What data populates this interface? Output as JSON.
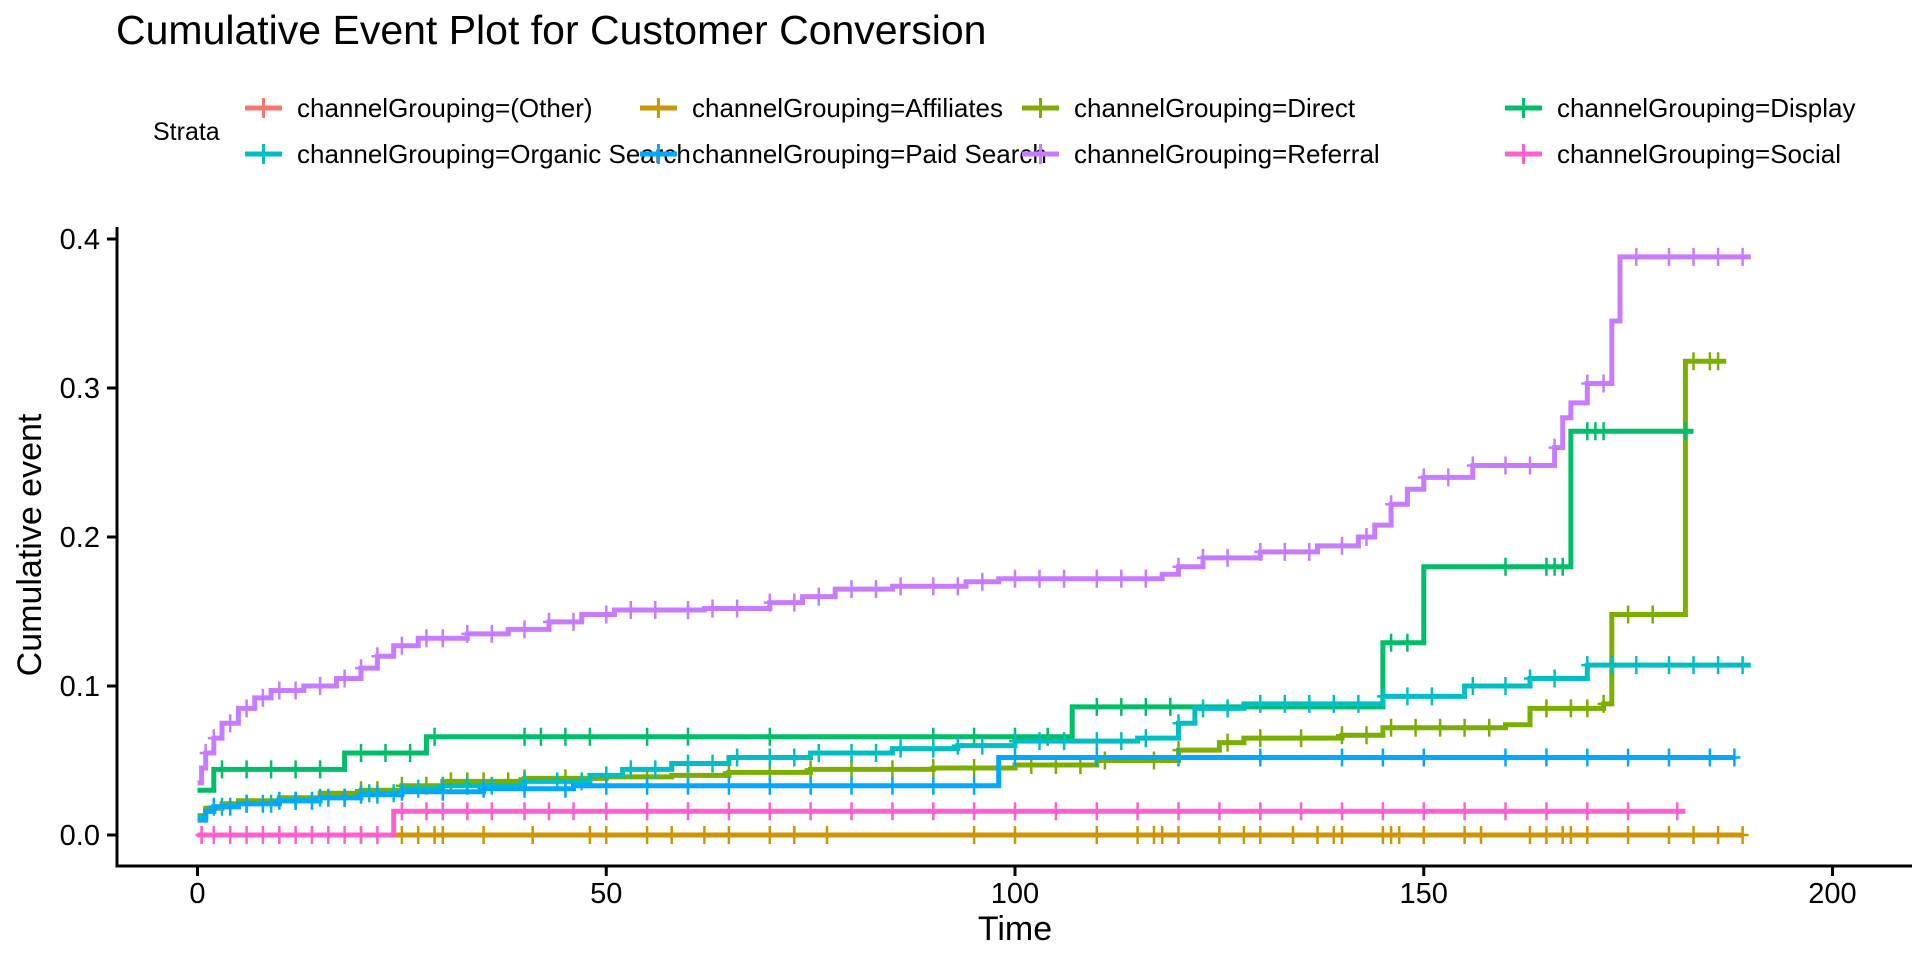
{
  "chart_data": {
    "type": "line",
    "subtype": "step",
    "title": "Cumulative Event Plot for Customer Conversion",
    "xlabel": "Time",
    "ylabel": "Cumulative event",
    "xlim": [
      -10,
      207
    ],
    "ylim": [
      -0.019,
      0.41
    ],
    "xticks": [
      0,
      50,
      100,
      150,
      200
    ],
    "yticks": [
      0.0,
      0.1,
      0.2,
      0.3,
      0.4
    ],
    "xtick_labels": [
      "0",
      "50",
      "100",
      "150",
      "200"
    ],
    "ytick_labels": [
      "0.0",
      "0.1",
      "0.2",
      "0.3",
      "0.4"
    ],
    "grid": false,
    "legend": {
      "title": "Strata",
      "placement": "top",
      "columns": 4
    },
    "series": [
      {
        "name": "channelGrouping=(Other)",
        "color": "#F8766D",
        "steps": [
          [
            0,
            0.0
          ],
          [
            1,
            0.0
          ]
        ],
        "censor": [
          0.5
        ]
      },
      {
        "name": "channelGrouping=Affiliates",
        "color": "#CD9600",
        "steps": [
          [
            0,
            0.0
          ],
          [
            189,
            0.0
          ]
        ],
        "censor": [
          20,
          25,
          27,
          29,
          30,
          35,
          41,
          48,
          50,
          55,
          58,
          62,
          65,
          70,
          73,
          77,
          95,
          100,
          110,
          115,
          117,
          118,
          120,
          125,
          128,
          130,
          134,
          137,
          139,
          140,
          145,
          146,
          147,
          150,
          155,
          157,
          163,
          165,
          167,
          168,
          170,
          175,
          180,
          183,
          186,
          189
        ]
      },
      {
        "name": "channelGrouping=Direct",
        "color": "#7CAE00",
        "steps": [
          [
            0,
            0.013
          ],
          [
            1,
            0.018
          ],
          [
            3,
            0.021
          ],
          [
            5,
            0.023
          ],
          [
            10,
            0.025
          ],
          [
            15,
            0.028
          ],
          [
            20,
            0.03
          ],
          [
            25,
            0.033
          ],
          [
            30,
            0.036
          ],
          [
            40,
            0.038
          ],
          [
            50,
            0.039
          ],
          [
            58,
            0.04
          ],
          [
            65,
            0.042
          ],
          [
            75,
            0.044
          ],
          [
            90,
            0.045
          ],
          [
            100,
            0.047
          ],
          [
            110,
            0.05
          ],
          [
            120,
            0.057
          ],
          [
            125,
            0.062
          ],
          [
            128,
            0.065
          ],
          [
            140,
            0.067
          ],
          [
            145,
            0.072
          ],
          [
            160,
            0.074
          ],
          [
            163,
            0.085
          ],
          [
            172,
            0.088
          ],
          [
            173,
            0.148
          ],
          [
            181,
            0.148
          ],
          [
            182,
            0.318
          ],
          [
            187,
            0.318
          ]
        ],
        "censor": [
          20,
          22,
          25,
          28,
          31,
          33,
          35,
          38,
          40,
          45,
          50,
          55,
          60,
          65,
          70,
          75,
          80,
          85,
          90,
          95,
          98,
          102,
          105,
          108,
          111,
          117,
          120,
          126,
          130,
          135,
          140,
          143,
          146,
          149,
          152,
          155,
          158,
          165,
          168,
          170,
          172,
          175,
          178,
          183,
          185,
          186
        ]
      },
      {
        "name": "channelGrouping=Display",
        "color": "#00BE67",
        "steps": [
          [
            0,
            0.03
          ],
          [
            2,
            0.044
          ],
          [
            18,
            0.055
          ],
          [
            28,
            0.066
          ],
          [
            107,
            0.086
          ],
          [
            145,
            0.129
          ],
          [
            150,
            0.18
          ],
          [
            168,
            0.271
          ],
          [
            183,
            0.271
          ]
        ],
        "censor": [
          3,
          6,
          9,
          12,
          15,
          20,
          23,
          26,
          29,
          40,
          42,
          45,
          48,
          55,
          60,
          70,
          90,
          95,
          100,
          104,
          110,
          113,
          116,
          119,
          146,
          148,
          160,
          165,
          166,
          167,
          170,
          171,
          172,
          182
        ]
      },
      {
        "name": "channelGrouping=Organic Search",
        "color": "#00BFC4",
        "steps": [
          [
            0,
            0.012
          ],
          [
            1,
            0.016
          ],
          [
            2,
            0.019
          ],
          [
            5,
            0.021
          ],
          [
            10,
            0.023
          ],
          [
            15,
            0.025
          ],
          [
            20,
            0.028
          ],
          [
            25,
            0.031
          ],
          [
            30,
            0.033
          ],
          [
            40,
            0.036
          ],
          [
            48,
            0.04
          ],
          [
            52,
            0.044
          ],
          [
            58,
            0.048
          ],
          [
            65,
            0.052
          ],
          [
            75,
            0.055
          ],
          [
            85,
            0.058
          ],
          [
            93,
            0.06
          ],
          [
            100,
            0.063
          ],
          [
            115,
            0.065
          ],
          [
            120,
            0.075
          ],
          [
            122,
            0.085
          ],
          [
            128,
            0.088
          ],
          [
            145,
            0.093
          ],
          [
            155,
            0.1
          ],
          [
            163,
            0.105
          ],
          [
            170,
            0.114
          ],
          [
            190,
            0.114
          ]
        ],
        "censor": [
          3,
          6,
          9,
          12,
          15,
          18,
          21,
          24,
          27,
          30,
          33,
          36,
          40,
          44,
          47,
          50,
          53,
          56,
          60,
          63,
          66,
          70,
          73,
          76,
          80,
          83,
          86,
          90,
          93,
          96,
          100,
          103,
          106,
          110,
          113,
          116,
          120,
          123,
          126,
          130,
          133,
          136,
          139,
          142,
          145,
          148,
          151,
          156,
          160,
          163,
          166,
          170,
          173,
          176,
          180,
          183,
          186,
          189
        ]
      },
      {
        "name": "channelGrouping=Paid Search",
        "color": "#00A9FF",
        "steps": [
          [
            0,
            0.01
          ],
          [
            1,
            0.016
          ],
          [
            2,
            0.019
          ],
          [
            5,
            0.021
          ],
          [
            10,
            0.023
          ],
          [
            15,
            0.025
          ],
          [
            20,
            0.027
          ],
          [
            25,
            0.029
          ],
          [
            35,
            0.031
          ],
          [
            46,
            0.033
          ],
          [
            98,
            0.052
          ],
          [
            188,
            0.052
          ]
        ],
        "censor": [
          2,
          4,
          6,
          8,
          10,
          12,
          14,
          16,
          18,
          20,
          22,
          25,
          30,
          35,
          40,
          45,
          50,
          55,
          60,
          65,
          70,
          75,
          80,
          85,
          90,
          95,
          100,
          110,
          120,
          130,
          140,
          145,
          150,
          160,
          165,
          170,
          175,
          180,
          185,
          188
        ]
      },
      {
        "name": "channelGrouping=Referral",
        "color": "#C77CFF",
        "steps": [
          [
            0,
            0.035
          ],
          [
            0.5,
            0.045
          ],
          [
            1,
            0.055
          ],
          [
            2,
            0.065
          ],
          [
            3,
            0.075
          ],
          [
            5,
            0.085
          ],
          [
            7,
            0.092
          ],
          [
            9,
            0.097
          ],
          [
            13,
            0.1
          ],
          [
            17,
            0.105
          ],
          [
            20,
            0.112
          ],
          [
            22,
            0.12
          ],
          [
            24,
            0.127
          ],
          [
            27,
            0.132
          ],
          [
            33,
            0.135
          ],
          [
            38,
            0.138
          ],
          [
            43,
            0.143
          ],
          [
            47,
            0.148
          ],
          [
            51,
            0.151
          ],
          [
            62,
            0.152
          ],
          [
            70,
            0.156
          ],
          [
            74,
            0.16
          ],
          [
            78,
            0.165
          ],
          [
            85,
            0.167
          ],
          [
            94,
            0.17
          ],
          [
            98,
            0.172
          ],
          [
            118,
            0.175
          ],
          [
            120,
            0.18
          ],
          [
            123,
            0.186
          ],
          [
            130,
            0.19
          ],
          [
            137,
            0.194
          ],
          [
            142,
            0.2
          ],
          [
            144,
            0.208
          ],
          [
            146,
            0.222
          ],
          [
            148,
            0.232
          ],
          [
            150,
            0.24
          ],
          [
            155,
            0.24
          ],
          [
            156,
            0.248
          ],
          [
            166,
            0.26
          ],
          [
            167,
            0.28
          ],
          [
            168,
            0.29
          ],
          [
            170,
            0.303
          ],
          [
            173,
            0.345
          ],
          [
            174,
            0.388
          ],
          [
            190,
            0.388
          ]
        ],
        "censor": [
          1,
          2,
          4,
          6,
          8,
          10,
          12,
          15,
          18,
          20,
          22,
          25,
          28,
          30,
          33,
          36,
          40,
          43,
          46,
          50,
          53,
          56,
          60,
          63,
          66,
          70,
          73,
          76,
          80,
          83,
          86,
          90,
          93,
          96,
          100,
          103,
          106,
          110,
          113,
          116,
          120,
          123,
          126,
          130,
          133,
          136,
          140,
          143,
          146,
          150,
          153,
          156,
          160,
          163,
          166,
          170,
          172,
          176,
          180,
          183,
          186,
          189
        ]
      },
      {
        "name": "channelGrouping=Social",
        "color": "#FF61CC",
        "steps": [
          [
            0,
            0.0
          ],
          [
            23,
            0.0
          ],
          [
            24,
            0.016
          ],
          [
            182,
            0.016
          ]
        ],
        "censor": [
          0.5,
          2,
          4,
          6,
          8,
          10,
          12,
          14,
          16,
          18,
          20,
          22,
          25,
          28,
          30,
          33,
          36,
          40,
          43,
          46,
          50,
          55,
          60,
          65,
          70,
          75,
          80,
          85,
          90,
          95,
          100,
          105,
          110,
          115,
          120,
          125,
          130,
          135,
          140,
          145,
          150,
          155,
          160,
          165,
          170,
          175,
          181
        ]
      }
    ]
  }
}
